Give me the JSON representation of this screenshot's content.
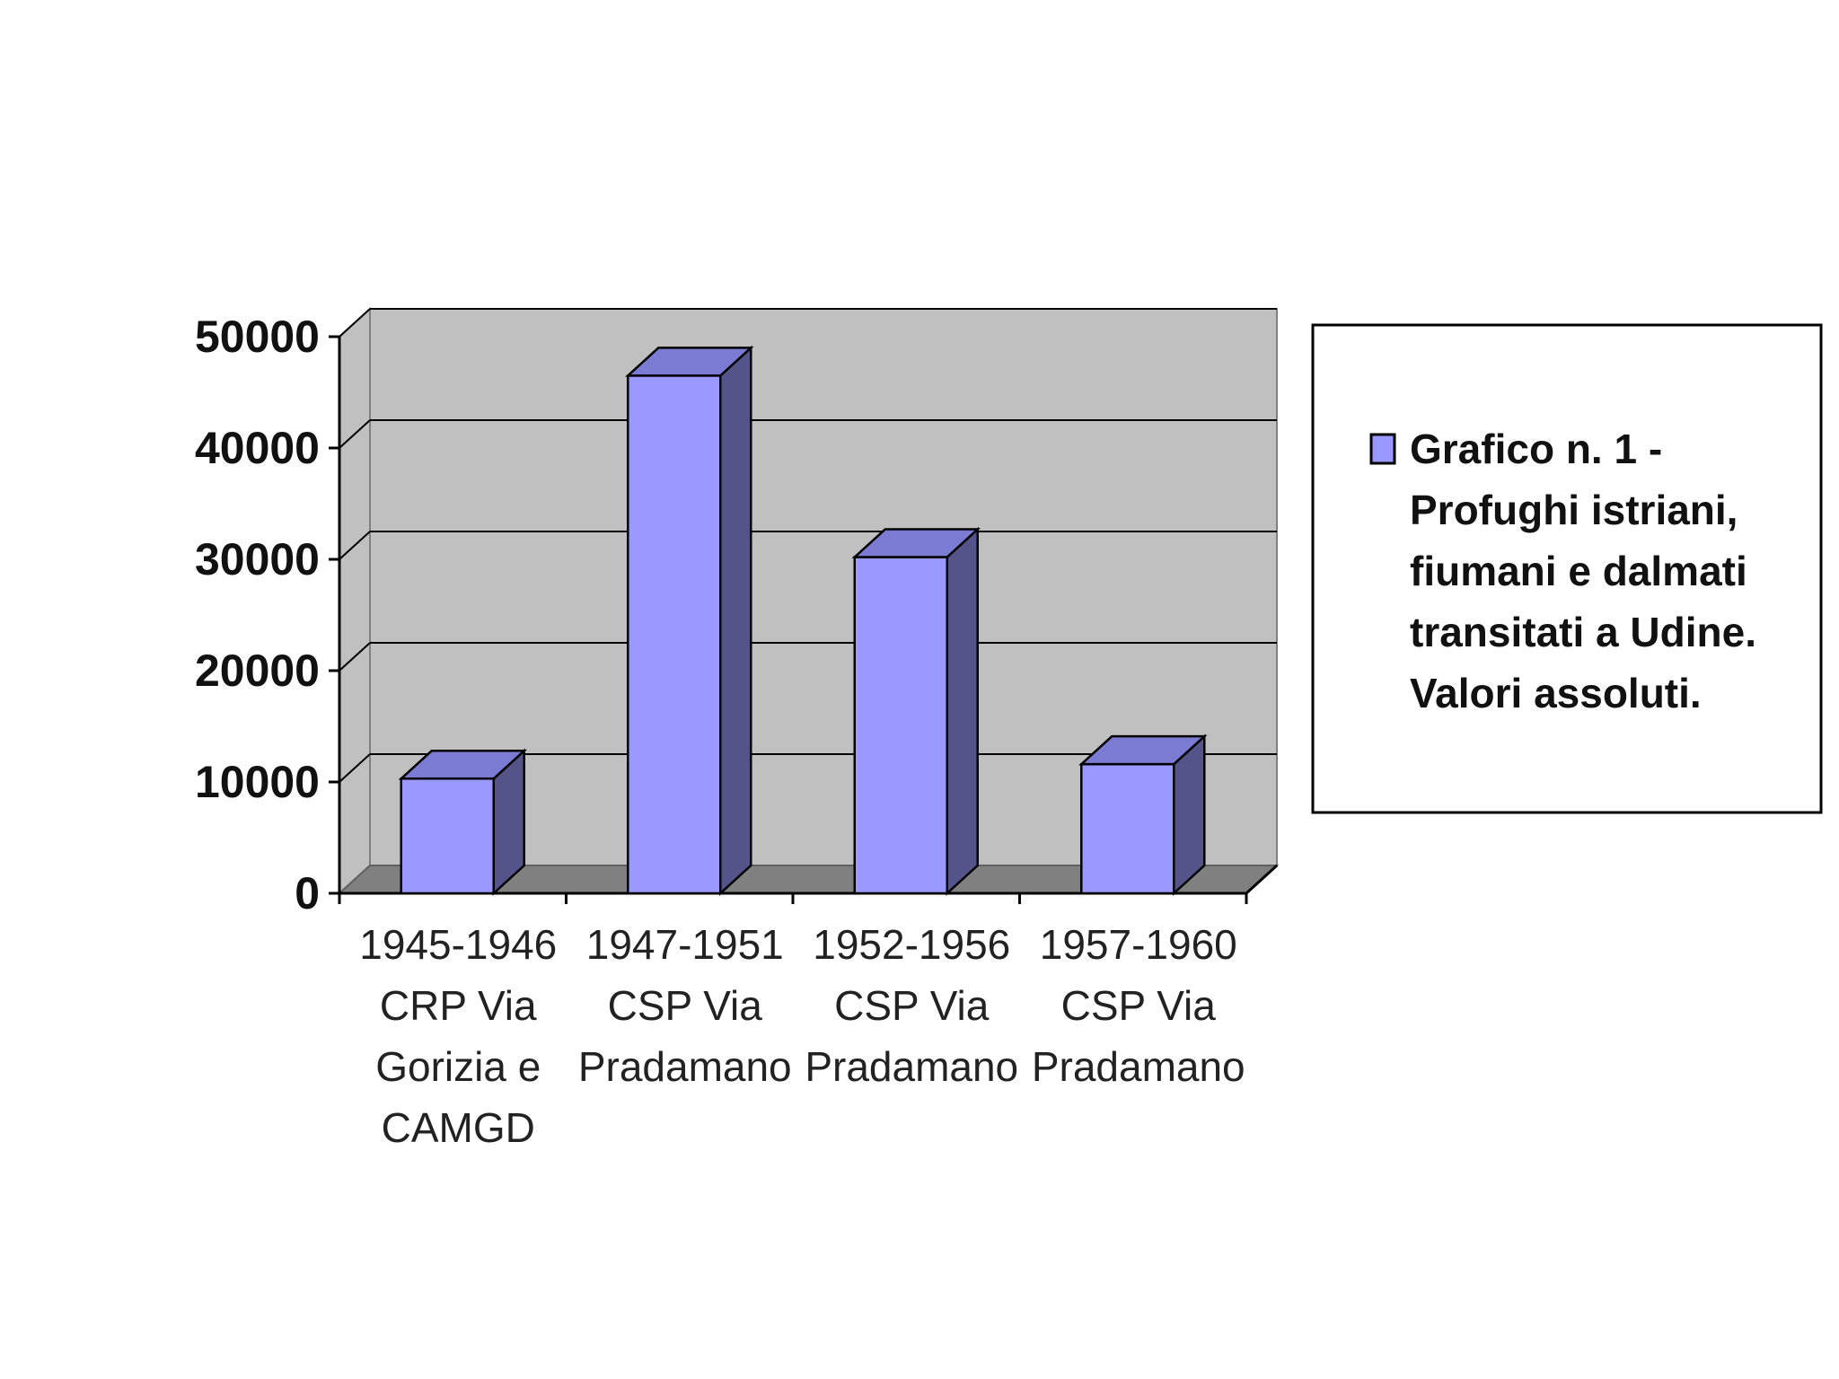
{
  "chart_data": {
    "type": "bar",
    "title": "",
    "xlabel": "",
    "ylabel": "",
    "ylim": [
      0,
      50000
    ],
    "yticks": [
      "0",
      "10000",
      "20000",
      "30000",
      "40000",
      "50000"
    ],
    "categories": [
      [
        "1945-1946",
        "CRP Via",
        "Gorizia e",
        "CAMGD"
      ],
      [
        "1947-1951",
        "CSP Via",
        "Pradamano"
      ],
      [
        "1952-1956",
        "CSP Via",
        "Pradamano"
      ],
      [
        "1957-1960",
        "CSP Via",
        "Pradamano"
      ]
    ],
    "series": [
      {
        "name": "Grafico n. 1 - Profughi istriani, fiumani e dalmati transitati a Udine. Valori assoluti.",
        "values": [
          10300,
          46500,
          30200,
          11600
        ]
      }
    ],
    "legend_lines": [
      "Grafico n. 1 -",
      "Profughi istriani,",
      "fiumani e dalmati",
      "transitati a Udine.",
      "Valori assoluti."
    ],
    "legend_position": "right",
    "grid": true,
    "style": "3d-column",
    "colors": {
      "bar_front": "#9999ff",
      "bar_side": "#55548a",
      "bar_top": "#7b7bd4",
      "plot_wall": "#c0c0c0",
      "plot_floor": "#808080",
      "gridline": "#000000"
    }
  }
}
